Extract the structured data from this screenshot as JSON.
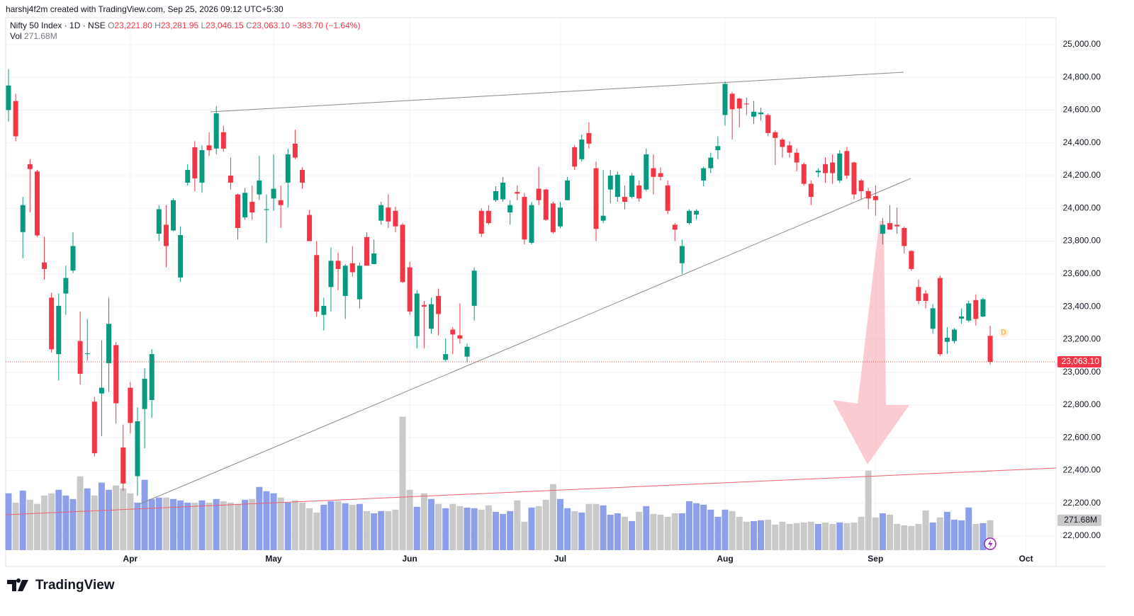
{
  "header": {
    "author_line": "harshj4f2m created with TradingView.com, Sep 25, 2026 09:12 UTC+5:30",
    "symbol": "Nifty 50 Index · 1D · NSE",
    "ohlc": [
      {
        "label": "O",
        "value": "23,221.80"
      },
      {
        "label": "H",
        "value": "23,281.95"
      },
      {
        "label": "L",
        "value": "23,046.15"
      },
      {
        "label": "C",
        "value": "23,063.10"
      }
    ],
    "change": "−383.70 (−1.64%)",
    "volume_label": "Vol",
    "volume_value": "271.68M"
  },
  "footer": {
    "logo": "TradingView"
  },
  "chart_data": {
    "type": "candlestick",
    "categories": [
      null,
      null,
      null,
      null,
      null,
      null,
      null,
      null,
      null,
      null,
      null,
      null,
      null,
      null,
      null,
      null,
      null,
      "Apr",
      null,
      null,
      null,
      null,
      null,
      null,
      null,
      null,
      null,
      null,
      null,
      null,
      null,
      null,
      null,
      null,
      null,
      null,
      null,
      "May",
      null,
      null,
      null,
      null,
      null,
      null,
      null,
      null,
      null,
      null,
      null,
      null,
      null,
      null,
      null,
      null,
      null,
      null,
      "Jun",
      null,
      null,
      null,
      null,
      null,
      null,
      null,
      null,
      null,
      null,
      null,
      null,
      null,
      null,
      null,
      null,
      null,
      null,
      null,
      null,
      "Jul",
      null,
      null,
      null,
      null,
      null,
      null,
      null,
      null,
      null,
      null,
      null,
      null,
      null,
      null,
      null,
      null,
      null,
      null,
      null,
      null,
      null,
      null,
      "Aug",
      null,
      null,
      null,
      null,
      null,
      null,
      null,
      null,
      null,
      null,
      null,
      null,
      null,
      null,
      null,
      null,
      null,
      null,
      null,
      null,
      "Sep",
      null,
      null,
      null,
      null,
      null,
      null,
      null,
      null,
      null,
      null,
      null,
      null,
      null,
      null,
      null,
      null,
      null,
      null,
      null,
      null,
      "Oct",
      null,
      null,
      null,
      null
    ],
    "open": [
      24600,
      24655,
      23855,
      24270,
      24225,
      23670,
      23455,
      23110,
      23480,
      23620,
      23190,
      23110,
      22820,
      22870,
      23055,
      23165,
      22540,
      22905,
      22365,
      22775,
      22830,
      23845,
      23900,
      23865,
      23578,
      24157,
      24373,
      24157,
      24385,
      24365,
      24465,
      24200,
      24085,
      23945,
      24040,
      24085,
      23990,
      24060,
      24050,
      24157,
      24395,
      24235,
      23960,
      23715,
      23350,
      23520,
      23680,
      23465,
      23665,
      23445,
      23825,
      23660,
      23925,
      24005,
      23985,
      23900,
      23640,
      23220,
      23410,
      23265,
      23465,
      23075,
      23260,
      23225,
      23095,
      23405,
      23985,
      23985,
      24050,
      24055,
      23975,
      24100,
      24070,
      23790,
      24120,
      24115,
      24030,
      23890,
      24050,
      24373,
      24300,
      24460,
      24245,
      23925,
      24115,
      24070,
      24070,
      24070,
      24140,
      24115,
      24245,
      24215,
      24140,
      23900,
      23665,
      23910,
      23962,
      24170,
      24245,
      24355,
      24570,
      24700,
      24670,
      24640,
      24560,
      24575,
      24570,
      24465,
      24420,
      24385,
      24340,
      24270,
      24150,
      24220,
      24270,
      24280,
      24170,
      24350,
      24280,
      24170,
      24105,
      24075,
      23845,
      23910,
      23900,
      23880,
      23740,
      23520,
      23480,
      23265,
      23575,
      23185,
      23190,
      23327,
      23315,
      23440,
      23340,
      23221.8,
      null,
      null,
      null,
      null,
      null,
      null,
      null,
      null,
      null
    ],
    "high": [
      24850,
      24700,
      24070,
      24300,
      24235,
      23825,
      23485,
      23480,
      23650,
      23855,
      23370,
      23325,
      22850,
      23195,
      23455,
      23185,
      22680,
      22940,
      22785,
      23025,
      23140,
      24020,
      24020,
      24060,
      23890,
      24270,
      24410,
      24385,
      24465,
      24625,
      24505,
      24310,
      24090,
      24125,
      24140,
      24320,
      24085,
      24330,
      24140,
      24365,
      24480,
      24250,
      23990,
      23800,
      23455,
      23760,
      23730,
      23660,
      23770,
      23670,
      23855,
      23810,
      24040,
      24085,
      24010,
      23910,
      23675,
      23500,
      23435,
      23455,
      23510,
      23205,
      23275,
      23420,
      23175,
      23640,
      24000,
      24020,
      24135,
      24192,
      24050,
      24140,
      24095,
      24040,
      24255,
      24120,
      24040,
      24040,
      24192,
      24385,
      24450,
      24525,
      24285,
      24235,
      24235,
      24225,
      24140,
      24215,
      24170,
      24365,
      24330,
      24250,
      24170,
      23910,
      23810,
      23995,
      23995,
      24255,
      24340,
      24440,
      24775,
      24710,
      24675,
      24675,
      24655,
      24615,
      24580,
      24475,
      24430,
      24410,
      24365,
      24280,
      24170,
      24245,
      24310,
      24330,
      24355,
      24375,
      24285,
      24180,
      24125,
      24140,
      23940,
      24020,
      24005,
      23890,
      23745,
      23565,
      23500,
      23415,
      23590,
      23275,
      23270,
      23390,
      23435,
      23475,
      23455,
      23281.95,
      null,
      null,
      null,
      null,
      null,
      null,
      null,
      null,
      null
    ],
    "low": [
      24530,
      24410,
      23695,
      23975,
      23825,
      23565,
      23120,
      22950,
      23350,
      23605,
      22925,
      23070,
      22485,
      22610,
      22880,
      22685,
      22275,
      22625,
      22245,
      22535,
      22720,
      23800,
      23640,
      23860,
      23550,
      24140,
      24105,
      24095,
      24320,
      24330,
      24345,
      24115,
      23810,
      23930,
      23930,
      24050,
      23790,
      23985,
      23880,
      24005,
      24300,
      24120,
      23800,
      23340,
      23255,
      23370,
      23500,
      23325,
      23585,
      23390,
      23650,
      23660,
      23900,
      23880,
      23855,
      23545,
      23350,
      23145,
      23145,
      23235,
      23225,
      23065,
      23110,
      23175,
      23060,
      23315,
      23825,
      23900,
      24040,
      24040,
      23900,
      24050,
      23780,
      23780,
      24020,
      23925,
      23845,
      23880,
      24050,
      24235,
      24285,
      24365,
      23800,
      23910,
      24030,
      24040,
      23995,
      24060,
      24040,
      24105,
      24085,
      24170,
      23965,
      23800,
      23600,
      23900,
      23930,
      24135,
      24215,
      24300,
      24505,
      24420,
      24495,
      24570,
      24515,
      24535,
      24440,
      24265,
      24310,
      24310,
      24225,
      24140,
      24020,
      24190,
      24155,
      24150,
      24155,
      24180,
      24055,
      24055,
      23995,
      23955,
      23780,
      23870,
      23845,
      23725,
      23620,
      23415,
      23390,
      23235,
      23100,
      23110,
      23175,
      23295,
      23305,
      23285,
      23335,
      23046.15,
      null,
      null,
      null,
      null,
      null,
      null,
      null,
      null,
      null
    ],
    "close": [
      24750,
      24440,
      24020,
      24240,
      23835,
      23630,
      23140,
      23405,
      23575,
      23770,
      22990,
      23115,
      22505,
      22905,
      23295,
      22810,
      22320,
      22690,
      22700,
      22960,
      23110,
      23995,
      23770,
      24050,
      23837,
      24235,
      24183,
      24355,
      24355,
      24580,
      24365,
      24157,
      23880,
      24095,
      23975,
      24170,
      23995,
      24120,
      24020,
      24330,
      24310,
      24157,
      23800,
      23370,
      23405,
      23680,
      23630,
      23650,
      23610,
      23650,
      23650,
      23725,
      24020,
      23920,
      23890,
      23550,
      23370,
      23480,
      23400,
      23415,
      23355,
      23110,
      23230,
      23205,
      23155,
      23620,
      23845,
      23910,
      24105,
      24157,
      24020,
      24090,
      23810,
      24020,
      24050,
      23930,
      23855,
      24005,
      24170,
      24255,
      24420,
      24395,
      23875,
      23955,
      24200,
      24205,
      24040,
      24200,
      24060,
      24330,
      24192,
      24192,
      23985,
      23870,
      23770,
      23985,
      23985,
      24245,
      24310,
      24380,
      24760,
      24605,
      24610,
      24635,
      24590,
      24585,
      24460,
      24430,
      24375,
      24340,
      24280,
      24150,
      24070,
      24230,
      24215,
      24215,
      24335,
      24200,
      24085,
      24105,
      24060,
      24050,
      23900,
      23870,
      23890,
      23770,
      23630,
      23435,
      23435,
      23390,
      23110,
      23210,
      23260,
      23340,
      23420,
      23325,
      23445,
      23063.1,
      null,
      null,
      null,
      null,
      null,
      null,
      null,
      null,
      null
    ],
    "volume": [
      518,
      433,
      543,
      459,
      421,
      498,
      518,
      550,
      498,
      466,
      673,
      563,
      498,
      615,
      550,
      589,
      563,
      518,
      433,
      641,
      466,
      479,
      479,
      466,
      453,
      433,
      433,
      453,
      433,
      466,
      446,
      433,
      421,
      459,
      466,
      576,
      537,
      518,
      479,
      433,
      453,
      433,
      382,
      343,
      414,
      446,
      446,
      427,
      414,
      421,
      356,
      336,
      356,
      356,
      369,
      1216,
      550,
      395,
      518,
      466,
      421,
      382,
      421,
      401,
      388,
      382,
      369,
      408,
      349,
      330,
      356,
      453,
      259,
      388,
      401,
      459,
      602,
      466,
      382,
      356,
      343,
      421,
      421,
      408,
      323,
      336,
      304,
      265,
      349,
      401,
      330,
      323,
      304,
      336,
      336,
      446,
      427,
      414,
      369,
      304,
      369,
      356,
      304,
      259,
      265,
      272,
      278,
      233,
      259,
      239,
      246,
      252,
      259,
      239,
      252,
      239,
      252,
      246,
      252,
      304,
      725,
      298,
      336,
      323,
      239,
      226,
      220,
      239,
      362,
      252,
      298,
      349,
      278,
      272,
      388,
      239,
      246,
      271.68,
      null,
      null,
      null,
      null,
      null,
      null,
      null,
      null,
      null
    ],
    "up_color": "#089981",
    "down_color": "#f23645",
    "volume_up_color": "#8d9fe9",
    "volume_down_color": "#c9c9c9",
    "ylim": [
      21814,
      25164
    ],
    "yticks": [
      {
        "value": 22000,
        "label": "22,000.00"
      },
      {
        "value": 22200,
        "label": "22,200.00"
      },
      {
        "value": 22400,
        "label": "22,400.00"
      },
      {
        "value": 22600,
        "label": "22,600.00"
      },
      {
        "value": 22800,
        "label": "22,800.00"
      },
      {
        "value": 23000,
        "label": "23,000.00"
      },
      {
        "value": 23200,
        "label": "23,200.00"
      },
      {
        "value": 23400,
        "label": "23,400.00"
      },
      {
        "value": 23600,
        "label": "23,600.00"
      },
      {
        "value": 23800,
        "label": "23,800.00"
      },
      {
        "value": 24000,
        "label": "24,000.00"
      },
      {
        "value": 24200,
        "label": "24,200.00"
      },
      {
        "value": 24400,
        "label": "24,400.00"
      },
      {
        "value": 24600,
        "label": "24,600.00"
      },
      {
        "value": 24800,
        "label": "24,800.00"
      },
      {
        "value": 25000,
        "label": "25,000.00"
      }
    ],
    "vlim": [
      0,
      1400
    ],
    "grid": true,
    "last_price": {
      "value": 23063.1,
      "label": "23,063.10"
    },
    "last_volume": {
      "value": 271.68,
      "label": "271.68M"
    },
    "event_marker": "D"
  }
}
